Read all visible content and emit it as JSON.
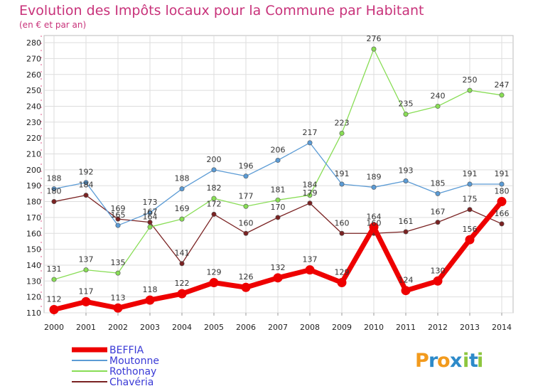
{
  "chart_data": {
    "type": "line",
    "title": "Evolution des Impôts locaux pour la Commune par Habitant",
    "subtitle": "(en € et par an)",
    "categories": [
      "2000",
      "2001",
      "2002",
      "2003",
      "2004",
      "2005",
      "2006",
      "2007",
      "2008",
      "2009",
      "2010",
      "2011",
      "2012",
      "2013",
      "2014"
    ],
    "ylim": [
      110,
      280
    ],
    "yticks": [
      110,
      120,
      130,
      140,
      150,
      160,
      170,
      180,
      190,
      200,
      210,
      220,
      230,
      240,
      250,
      260,
      270,
      280
    ],
    "grid": true,
    "legend_position": "bottom-left",
    "series": [
      {
        "name": "BEFFIA",
        "color": "#ee0000",
        "values": [
          112,
          117,
          113,
          118,
          122,
          129,
          126,
          132,
          137,
          129,
          164,
          124,
          130,
          156,
          180
        ]
      },
      {
        "name": "Moutonne",
        "color": "#5b9bd5",
        "values": [
          188,
          192,
          165,
          173,
          188,
          200,
          196,
          206,
          217,
          191,
          189,
          193,
          185,
          191,
          191
        ]
      },
      {
        "name": "Rothonay",
        "color": "#88dd55",
        "values": [
          131,
          137,
          135,
          164,
          169,
          182,
          177,
          181,
          184,
          223,
          276,
          235,
          240,
          250,
          247
        ]
      },
      {
        "name": "Chavéria",
        "color": "#7a2222",
        "values": [
          180,
          184,
          169,
          167,
          141,
          172,
          160,
          170,
          179,
          160,
          160,
          161,
          167,
          175,
          166
        ]
      }
    ]
  },
  "logo": {
    "text": "Proxiti",
    "letters": [
      "P",
      "r",
      "o",
      "x",
      "i",
      "t",
      "i"
    ]
  }
}
